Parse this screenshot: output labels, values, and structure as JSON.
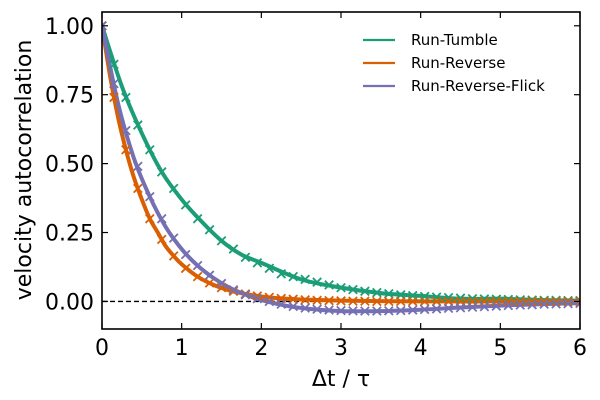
{
  "chart_data": {
    "type": "line",
    "title": "",
    "xlabel": "Δt / τ",
    "ylabel": "velocity autocorrelation",
    "xlim": [
      0,
      6
    ],
    "ylim": [
      -0.1,
      1.05
    ],
    "x_ticks": [
      0,
      1,
      2,
      3,
      4,
      5,
      6
    ],
    "y_ticks": [
      0.0,
      0.25,
      0.5,
      0.75,
      1.0
    ],
    "x_tick_labels": [
      "0",
      "1",
      "2",
      "3",
      "4",
      "5",
      "6"
    ],
    "y_tick_labels": [
      "0.00",
      "0.25",
      "0.50",
      "0.75",
      "1.00"
    ],
    "grid": false,
    "legend_position": "top-right",
    "reference_line": {
      "y": 0,
      "style": "dashed",
      "color": "#000000"
    },
    "series": [
      {
        "name": "Run-Tumble",
        "color": "#1b9e77",
        "line": {
          "x": [
            0,
            0.25,
            0.5,
            0.75,
            1,
            1.25,
            1.5,
            1.75,
            2,
            2.5,
            3,
            3.5,
            4,
            4.5,
            5,
            5.5,
            6
          ],
          "y": [
            1.0,
            0.78,
            0.61,
            0.47,
            0.37,
            0.29,
            0.22,
            0.17,
            0.14,
            0.08,
            0.05,
            0.03,
            0.02,
            0.01,
            0.01,
            0.005,
            0.003
          ]
        },
        "markers": {
          "x": [
            0,
            0.15,
            0.3,
            0.45,
            0.6,
            0.75,
            0.9,
            1.05,
            1.2,
            1.35,
            1.5,
            1.65,
            1.8,
            1.95,
            2.1,
            2.25,
            2.4,
            2.55,
            2.7,
            2.85,
            3,
            3.15,
            3.3,
            3.45,
            3.6,
            3.75,
            3.9,
            4.05,
            4.2,
            4.35,
            4.5,
            4.65,
            4.8,
            4.95,
            5.1,
            5.25,
            5.4,
            5.55,
            5.7,
            5.85,
            6
          ],
          "y": [
            1.0,
            0.86,
            0.74,
            0.64,
            0.55,
            0.47,
            0.41,
            0.35,
            0.3,
            0.26,
            0.22,
            0.19,
            0.16,
            0.14,
            0.12,
            0.1,
            0.09,
            0.08,
            0.07,
            0.06,
            0.05,
            0.043,
            0.037,
            0.032,
            0.028,
            0.024,
            0.021,
            0.018,
            0.016,
            0.014,
            0.012,
            0.01,
            0.009,
            0.008,
            0.007,
            0.006,
            0.005,
            0.004,
            0.004,
            0.003,
            0.003
          ]
        }
      },
      {
        "name": "Run-Reverse",
        "color": "#d95f02",
        "line": {
          "x": [
            0,
            0.1,
            0.2,
            0.3,
            0.4,
            0.5,
            0.6,
            0.7,
            0.8,
            0.9,
            1,
            1.2,
            1.4,
            1.6,
            1.8,
            2,
            2.2,
            2.5,
            3,
            3.5,
            4,
            5,
            6
          ],
          "y": [
            1.0,
            0.82,
            0.67,
            0.55,
            0.45,
            0.37,
            0.3,
            0.25,
            0.2,
            0.165,
            0.135,
            0.09,
            0.06,
            0.04,
            0.027,
            0.018,
            0.012,
            0.007,
            0.003,
            0.001,
            0.0,
            0.0,
            0.0
          ]
        },
        "markers": {
          "x": [
            0,
            0.15,
            0.3,
            0.45,
            0.6,
            0.75,
            0.9,
            1.05,
            1.2,
            1.35,
            1.5,
            1.65,
            1.8,
            1.95,
            2.1,
            2.25,
            2.4,
            2.55,
            2.7,
            2.85,
            3,
            3.15,
            3.3,
            3.45,
            3.6,
            3.75,
            3.9,
            4.05,
            4.2,
            4.35,
            4.5,
            4.65,
            4.8,
            4.95,
            5.1,
            5.25,
            5.4,
            5.55,
            5.7,
            5.85,
            6
          ],
          "y": [
            1.0,
            0.74,
            0.55,
            0.41,
            0.3,
            0.225,
            0.165,
            0.12,
            0.09,
            0.067,
            0.05,
            0.037,
            0.027,
            0.02,
            0.015,
            0.011,
            0.008,
            0.006,
            0.004,
            0.003,
            0.002,
            0.001,
            0.001,
            0.0,
            0.0,
            0.0,
            0.0,
            0.0,
            0.0,
            0.0,
            0.0,
            0.0,
            0.0,
            0.0,
            0.0,
            0.0,
            0.0,
            0.0,
            0.0,
            0.0,
            0.0
          ]
        }
      },
      {
        "name": "Run-Reverse-Flick",
        "color": "#7570b3",
        "line": {
          "x": [
            0,
            0.2,
            0.4,
            0.6,
            0.8,
            1,
            1.2,
            1.4,
            1.6,
            1.8,
            2,
            2.3,
            2.6,
            3,
            3.5,
            4,
            4.5,
            5,
            5.5,
            6
          ],
          "y": [
            1.0,
            0.72,
            0.52,
            0.38,
            0.27,
            0.19,
            0.13,
            0.085,
            0.05,
            0.025,
            0.005,
            -0.015,
            -0.027,
            -0.035,
            -0.035,
            -0.03,
            -0.022,
            -0.015,
            -0.01,
            -0.006
          ]
        },
        "markers": {
          "x": [
            0,
            0.15,
            0.3,
            0.45,
            0.6,
            0.75,
            0.9,
            1.05,
            1.2,
            1.35,
            1.5,
            1.65,
            1.8,
            1.95,
            2.1,
            2.25,
            2.4,
            2.55,
            2.7,
            2.85,
            3,
            3.15,
            3.3,
            3.45,
            3.6,
            3.75,
            3.9,
            4.05,
            4.2,
            4.35,
            4.5,
            4.65,
            4.8,
            4.95,
            5.1,
            5.25,
            5.4,
            5.55,
            5.7,
            5.85,
            6
          ],
          "y": [
            1.0,
            0.79,
            0.62,
            0.49,
            0.38,
            0.3,
            0.23,
            0.17,
            0.13,
            0.095,
            0.065,
            0.042,
            0.024,
            0.01,
            0.0,
            -0.01,
            -0.018,
            -0.024,
            -0.028,
            -0.031,
            -0.033,
            -0.034,
            -0.035,
            -0.035,
            -0.034,
            -0.033,
            -0.031,
            -0.029,
            -0.027,
            -0.025,
            -0.023,
            -0.021,
            -0.019,
            -0.017,
            -0.015,
            -0.013,
            -0.012,
            -0.01,
            -0.009,
            -0.008,
            -0.007
          ]
        }
      }
    ]
  }
}
